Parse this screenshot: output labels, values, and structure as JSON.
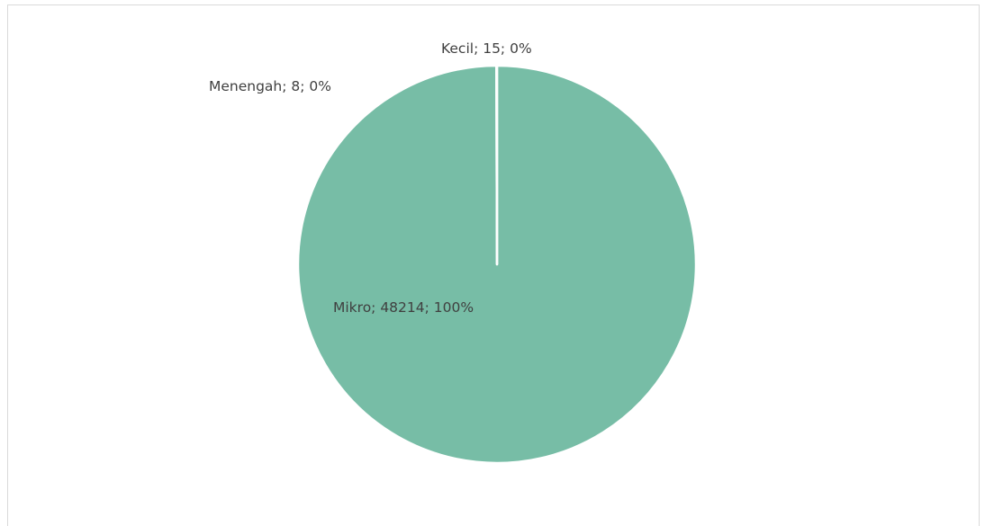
{
  "chart_data": {
    "type": "pie",
    "title": "",
    "slices": [
      {
        "name": "Mikro",
        "value": 48214,
        "percent": 100,
        "label": "Mikro; 48214; 100%",
        "color": "#77bda6"
      },
      {
        "name": "Kecil",
        "value": 15,
        "percent": 0,
        "label": "Kecil; 15; 0%",
        "color": "#77bda6"
      },
      {
        "name": "Menengah",
        "value": 8,
        "percent": 0,
        "label": "Menengah; 8; 0%",
        "color": "#77bda6"
      }
    ],
    "slice_border_color": "#ffffff",
    "legend": "none"
  }
}
